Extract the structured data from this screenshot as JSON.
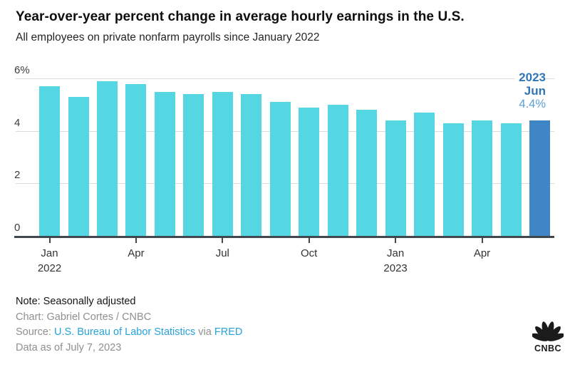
{
  "header": {
    "title": "Year-over-year percent change in average hourly earnings in the U.S.",
    "subtitle": "All employees on private nonfarm payrolls since January 2022"
  },
  "chart_data": {
    "type": "bar",
    "title": "Year-over-year percent change in average hourly earnings in the U.S.",
    "subtitle": "All employees on private nonfarm payrolls since January 2022",
    "x": [
      "Jan 2022",
      "Feb 2022",
      "Mar 2022",
      "Apr 2022",
      "May 2022",
      "Jun 2022",
      "Jul 2022",
      "Aug 2022",
      "Sep 2022",
      "Oct 2022",
      "Nov 2022",
      "Dec 2022",
      "Jan 2023",
      "Feb 2023",
      "Mar 2023",
      "Apr 2023",
      "May 2023",
      "Jun 2023"
    ],
    "values": [
      5.7,
      5.3,
      5.9,
      5.8,
      5.5,
      5.4,
      5.5,
      5.4,
      5.1,
      4.9,
      5.0,
      4.8,
      4.4,
      4.7,
      4.3,
      4.4,
      4.3,
      4.4
    ],
    "ylabel": "",
    "xlabel": "",
    "ylim": [
      0,
      6
    ],
    "grid": true,
    "legend_position": "none",
    "yticks": [
      {
        "value": 0,
        "label": "0"
      },
      {
        "value": 2,
        "label": "2"
      },
      {
        "value": 4,
        "label": "4"
      },
      {
        "value": 6,
        "label": "6%"
      }
    ],
    "xticks": [
      {
        "index": 0,
        "line1": "Jan",
        "line2": "2022"
      },
      {
        "index": 3,
        "line1": "Apr",
        "line2": ""
      },
      {
        "index": 6,
        "line1": "Jul",
        "line2": ""
      },
      {
        "index": 9,
        "line1": "Oct",
        "line2": ""
      },
      {
        "index": 12,
        "line1": "Jan",
        "line2": "2023"
      },
      {
        "index": 15,
        "line1": "Apr",
        "line2": ""
      }
    ],
    "bar_color": "#54d7e3",
    "highlight_color": "#3f86c7",
    "highlight_index": 17,
    "annotation": {
      "line1": "2023",
      "line2": "Jun",
      "line3": "4.4%"
    }
  },
  "footer": {
    "note": "Note: Seasonally adjusted",
    "credit": "Chart: Gabriel Cortes / CNBC",
    "source_prefix": "Source: ",
    "source_link1": "U.S. Bureau of Labor Statistics",
    "source_middle": " via ",
    "source_link2": "FRED",
    "data_as_of": "Data as of July 7, 2023"
  },
  "branding": {
    "logo": "CNBC"
  }
}
